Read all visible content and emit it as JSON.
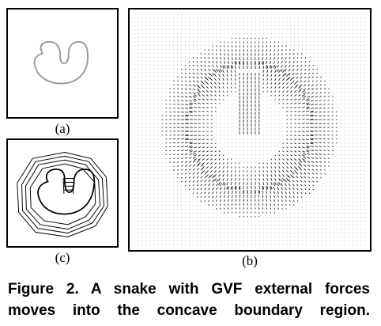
{
  "figure": {
    "panels": [
      {
        "id": "a",
        "label": "(a)"
      },
      {
        "id": "c",
        "label": "(c)"
      },
      {
        "id": "b",
        "label": "(b)"
      }
    ],
    "caption_line1": "Figure 2. A snake with GVF external forces",
    "caption_line2": "moves into the concave boundary region.",
    "colors": {
      "shape_stroke": "#9a9a9a",
      "snake_stroke": "#000000",
      "field_dots": "#8a8a8a",
      "field_arrows": "#222222"
    }
  }
}
